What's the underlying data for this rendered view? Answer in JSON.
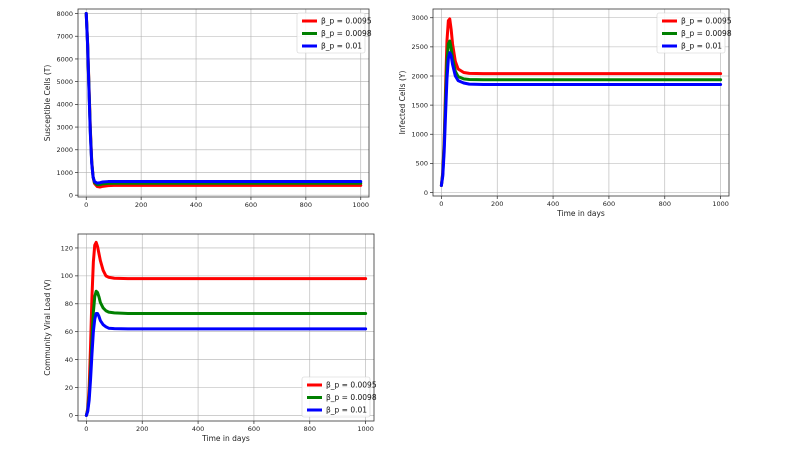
{
  "chart_data": [
    {
      "type": "line",
      "title": "",
      "xlabel": "",
      "ylabel": "Susceptible Cells (T)",
      "xlim": [
        -30,
        1030
      ],
      "ylim": [
        -80,
        8200
      ],
      "xticks": [
        0,
        200,
        400,
        600,
        800,
        1000
      ],
      "yticks": [
        0,
        1000,
        2000,
        3000,
        4000,
        5000,
        6000,
        7000,
        8000
      ],
      "grid": true,
      "legend_position": "top-right",
      "series": [
        {
          "name": "β_p = 0.0095",
          "color": "#ff0000",
          "x": [
            0,
            5,
            10,
            15,
            20,
            25,
            30,
            40,
            50,
            60,
            80,
            100,
            150,
            200,
            400,
            600,
            800,
            1000
          ],
          "y": [
            8000,
            6700,
            4800,
            2900,
            1500,
            800,
            520,
            380,
            360,
            390,
            420,
            430,
            430,
            430,
            430,
            430,
            430,
            430
          ]
        },
        {
          "name": "β_p = 0.0098",
          "color": "#008000",
          "x": [
            0,
            5,
            10,
            15,
            20,
            25,
            30,
            40,
            50,
            60,
            80,
            100,
            150,
            200,
            400,
            600,
            800,
            1000
          ],
          "y": [
            8000,
            6650,
            4700,
            2800,
            1450,
            800,
            560,
            460,
            470,
            500,
            520,
            525,
            525,
            525,
            525,
            525,
            525,
            525
          ]
        },
        {
          "name": "β_p = 0.01",
          "color": "#0000ff",
          "x": [
            0,
            5,
            10,
            15,
            20,
            25,
            30,
            40,
            50,
            60,
            80,
            100,
            150,
            200,
            400,
            600,
            800,
            1000
          ],
          "y": [
            8000,
            6600,
            4600,
            2700,
            1400,
            800,
            600,
            530,
            550,
            580,
            600,
            605,
            605,
            605,
            605,
            605,
            605,
            605
          ]
        }
      ]
    },
    {
      "type": "line",
      "title": "",
      "xlabel": "Time in days",
      "ylabel": "Infected Cells (Y)",
      "xlim": [
        -30,
        1030
      ],
      "ylim": [
        -60,
        3150
      ],
      "xticks": [
        0,
        200,
        400,
        600,
        800,
        1000
      ],
      "yticks": [
        0,
        500,
        1000,
        1500,
        2000,
        2500,
        3000
      ],
      "grid": true,
      "legend_position": "top-right",
      "series": [
        {
          "name": "β_p = 0.0095",
          "color": "#ff0000",
          "x": [
            0,
            5,
            10,
            15,
            20,
            25,
            30,
            35,
            40,
            50,
            60,
            80,
            100,
            150,
            200,
            400,
            600,
            800,
            1000
          ],
          "y": [
            120,
            350,
            900,
            1800,
            2600,
            2950,
            2980,
            2800,
            2550,
            2250,
            2120,
            2060,
            2045,
            2040,
            2040,
            2040,
            2040,
            2040,
            2040
          ]
        },
        {
          "name": "β_p = 0.0098",
          "color": "#008000",
          "x": [
            0,
            5,
            10,
            15,
            20,
            25,
            30,
            35,
            40,
            50,
            60,
            80,
            100,
            150,
            200,
            400,
            600,
            800,
            1000
          ],
          "y": [
            120,
            320,
            820,
            1600,
            2250,
            2550,
            2600,
            2480,
            2300,
            2080,
            1990,
            1950,
            1940,
            1935,
            1935,
            1935,
            1935,
            1935,
            1935
          ]
        },
        {
          "name": "β_p = 0.01",
          "color": "#0000ff",
          "x": [
            0,
            5,
            10,
            15,
            20,
            25,
            30,
            35,
            40,
            50,
            60,
            80,
            100,
            150,
            200,
            400,
            600,
            800,
            1000
          ],
          "y": [
            120,
            280,
            700,
            1350,
            1950,
            2300,
            2400,
            2350,
            2200,
            2000,
            1920,
            1880,
            1860,
            1855,
            1855,
            1855,
            1855,
            1855,
            1855
          ]
        }
      ]
    },
    {
      "type": "line",
      "title": "",
      "xlabel": "Time in days",
      "ylabel": "Community Viral Load (V)",
      "xlim": [
        -30,
        1030
      ],
      "ylim": [
        -4,
        130
      ],
      "xticks": [
        0,
        200,
        400,
        600,
        800,
        1000
      ],
      "yticks": [
        0,
        20,
        40,
        60,
        80,
        100,
        120
      ],
      "grid": true,
      "legend_position": "bottom-right",
      "series": [
        {
          "name": "β_p = 0.0095",
          "color": "#ff0000",
          "x": [
            0,
            5,
            10,
            15,
            20,
            25,
            30,
            35,
            40,
            45,
            50,
            60,
            70,
            80,
            100,
            150,
            200,
            400,
            600,
            800,
            1000
          ],
          "y": [
            0,
            5,
            20,
            50,
            85,
            110,
            122,
            124,
            121,
            116,
            111,
            104,
            100,
            99,
            98.3,
            98,
            98,
            98,
            98,
            98,
            98
          ]
        },
        {
          "name": "β_p = 0.0098",
          "color": "#008000",
          "x": [
            0,
            5,
            10,
            15,
            20,
            25,
            30,
            35,
            40,
            45,
            50,
            60,
            70,
            80,
            100,
            150,
            200,
            400,
            600,
            800,
            1000
          ],
          "y": [
            0,
            4,
            14,
            32,
            55,
            74,
            85,
            89,
            88,
            85,
            81,
            77,
            75,
            74,
            73.5,
            73,
            73,
            73,
            73,
            73,
            73
          ]
        },
        {
          "name": "β_p = 0.01",
          "color": "#0000ff",
          "x": [
            0,
            5,
            10,
            15,
            20,
            25,
            30,
            35,
            40,
            45,
            50,
            60,
            70,
            80,
            100,
            150,
            200,
            400,
            600,
            800,
            1000
          ],
          "y": [
            0,
            3,
            11,
            26,
            44,
            60,
            69,
            73,
            73,
            71,
            68,
            65,
            63.5,
            62.5,
            62.2,
            62,
            62,
            62,
            62,
            62,
            62
          ]
        }
      ]
    }
  ]
}
